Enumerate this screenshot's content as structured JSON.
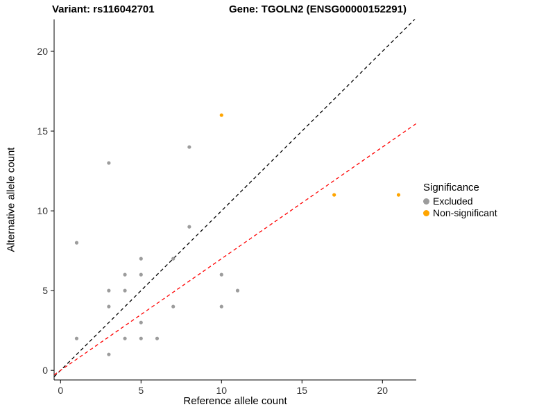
{
  "chart_data": {
    "type": "scatter",
    "title_left": "Variant: rs116042701",
    "title_right": "Gene: TGOLN2 (ENSG00000152291)",
    "xlabel": "Reference allele count",
    "ylabel": "Alternative allele count",
    "xlim": [
      -0.4,
      22.1
    ],
    "ylim": [
      -0.6,
      22.0
    ],
    "xticks": [
      0,
      5,
      10,
      15,
      20
    ],
    "yticks": [
      0,
      5,
      10,
      15,
      20
    ],
    "grid": false,
    "series": [
      {
        "name": "Excluded",
        "color": "#9c9c9c",
        "point_radius": 2.6,
        "points": [
          [
            1,
            8
          ],
          [
            1,
            2
          ],
          [
            3,
            13
          ],
          [
            3,
            5
          ],
          [
            3,
            4
          ],
          [
            3,
            1
          ],
          [
            4,
            6
          ],
          [
            4,
            5
          ],
          [
            4,
            2
          ],
          [
            5,
            7
          ],
          [
            5,
            6
          ],
          [
            5,
            3
          ],
          [
            5,
            2
          ],
          [
            6,
            2
          ],
          [
            7,
            7
          ],
          [
            7,
            4
          ],
          [
            8,
            14
          ],
          [
            8,
            9
          ],
          [
            10,
            6
          ],
          [
            10,
            4
          ],
          [
            11,
            5
          ]
        ]
      },
      {
        "name": "Non-significant",
        "color": "#FFA500",
        "point_radius": 2.6,
        "points": [
          [
            10,
            16
          ],
          [
            17,
            11
          ],
          [
            21,
            11
          ]
        ]
      }
    ],
    "lines": [
      {
        "name": "identity-line",
        "color": "#000000",
        "slope": 1.0,
        "intercept": 0,
        "dash": "5,4"
      },
      {
        "name": "fit-line",
        "color": "#FF0000",
        "slope": 0.7,
        "intercept": 0,
        "dash": "5,4"
      }
    ],
    "legend": {
      "title": "Significance",
      "position": "right",
      "items": [
        {
          "label": "Excluded",
          "color": "#9c9c9c"
        },
        {
          "label": "Non-significant",
          "color": "#FFA500"
        }
      ]
    },
    "axis_color": "#000000",
    "tick_label_color": "#333333"
  }
}
